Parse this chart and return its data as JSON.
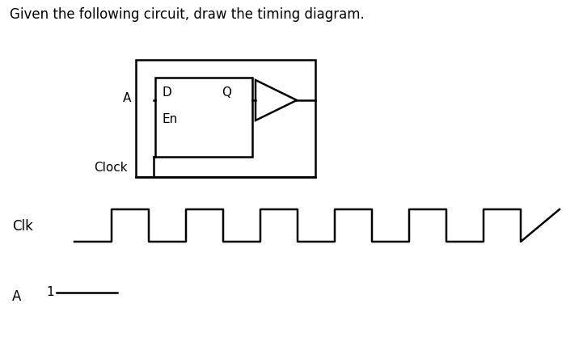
{
  "title": "Given the following circuit, draw the timing diagram.",
  "title_fontsize": 12,
  "bg_color": "#ffffff",
  "text_color": "#000000",
  "line_color": "#000000",
  "line_width": 1.8,
  "label_D": "D",
  "label_Q": "Q",
  "label_En": "En",
  "label_A": "A",
  "label_Clock": "Clock",
  "clk_label": "Clk",
  "a_label": "A",
  "a_value_label": "1"
}
